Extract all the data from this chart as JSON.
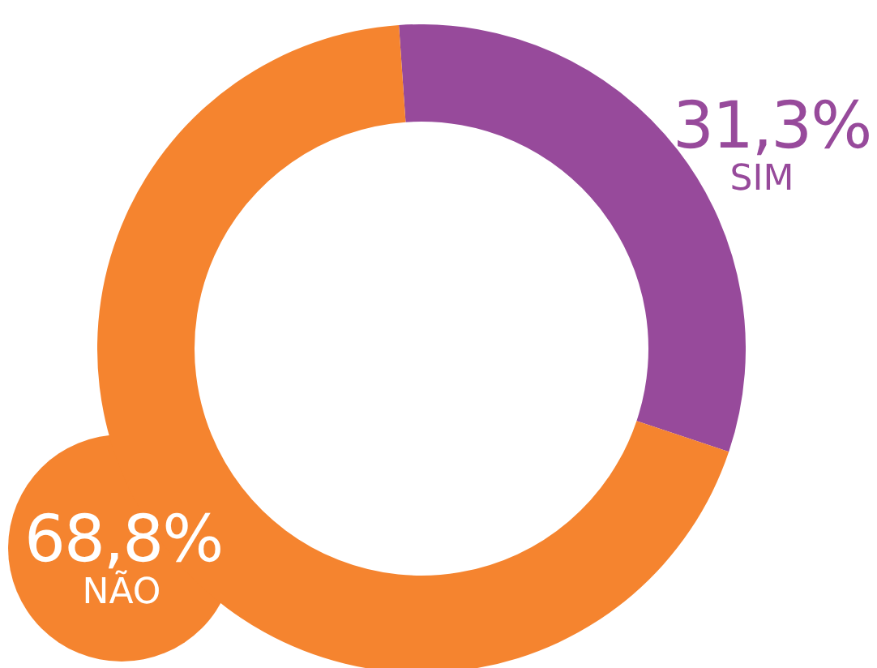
{
  "chart_data": {
    "type": "donut",
    "categories": [
      "SIM",
      "NÃO"
    ],
    "values": [
      31.3,
      68.8
    ],
    "colors": [
      "#974a9b",
      "#f5842f"
    ],
    "value_labels": [
      "31,3%",
      "68,8%"
    ],
    "legend": false
  }
}
